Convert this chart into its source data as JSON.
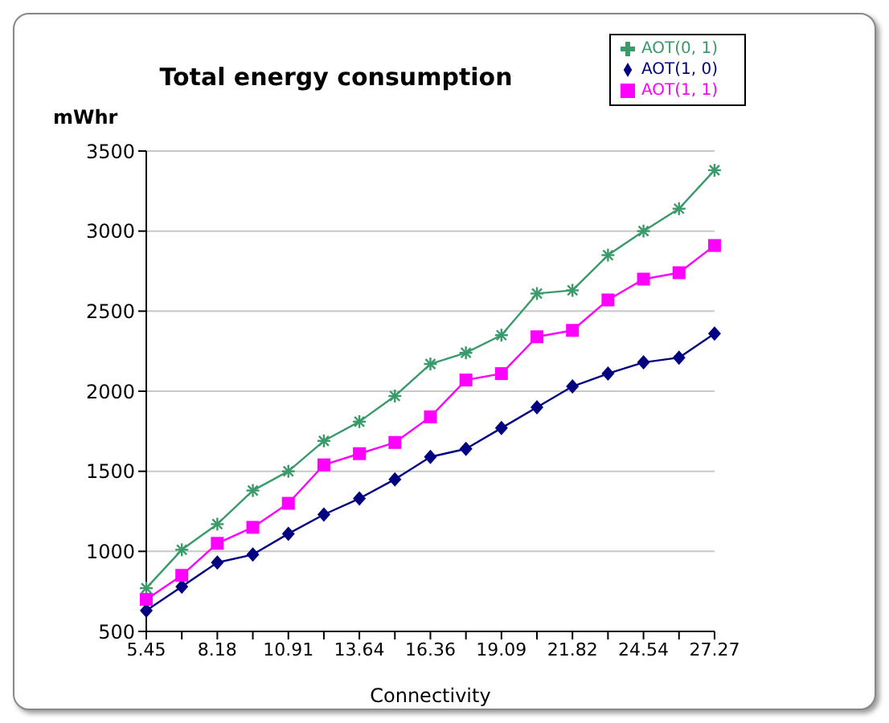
{
  "chart_data": {
    "type": "line",
    "title": "Total energy consumption",
    "ylabel": "mWhr",
    "xlabel": "Connectivity",
    "categories": [
      "5.45",
      null,
      "8.18",
      null,
      "10.91",
      null,
      "13.64",
      null,
      "16.36",
      null,
      "19.09",
      null,
      "21.82",
      null,
      "24.54",
      null,
      "27.27"
    ],
    "series": [
      {
        "name": "AOT(0, 1)",
        "color": "#3a9a6a",
        "marker": "cross",
        "values": [
          770,
          1010,
          1170,
          1380,
          1500,
          1690,
          1810,
          1970,
          2170,
          2240,
          2350,
          2610,
          2630,
          2850,
          3000,
          3140,
          3380
        ]
      },
      {
        "name": "AOT(1, 0)",
        "color": "#000080",
        "marker": "diamond",
        "values": [
          630,
          780,
          930,
          980,
          1110,
          1230,
          1330,
          1450,
          1590,
          1640,
          1770,
          1900,
          2030,
          2110,
          2180,
          2210,
          2360
        ]
      },
      {
        "name": "AOT(1, 1)",
        "color": "#ff00ff",
        "marker": "square",
        "values": [
          700,
          850,
          1050,
          1150,
          1300,
          1540,
          1610,
          1680,
          1840,
          2070,
          2110,
          2340,
          2380,
          2570,
          2700,
          2740,
          2910
        ]
      }
    ],
    "ylim": [
      500,
      3500
    ],
    "yticks": [
      500,
      1000,
      1500,
      2000,
      2500,
      3000,
      3500
    ],
    "grid": "y",
    "legend": "top right",
    "line_style": "solid"
  }
}
